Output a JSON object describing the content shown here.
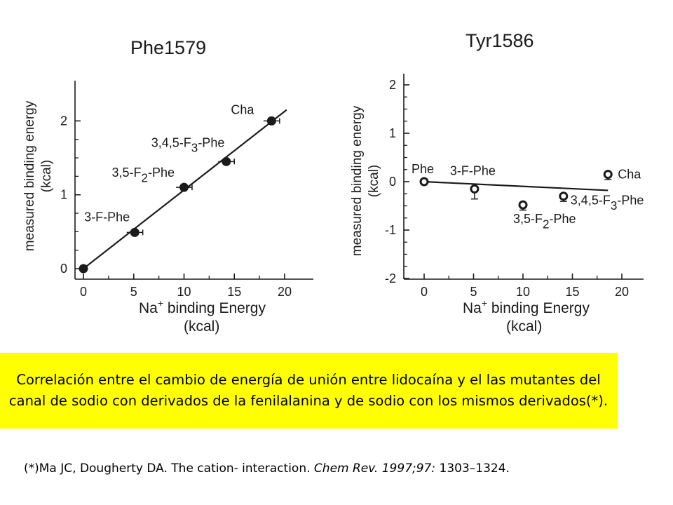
{
  "chart_data": [
    {
      "type": "scatter",
      "title": "Phe1579",
      "ylabel_line1": "measured binding energy",
      "ylabel_line2": "(kcal)",
      "xlabel_prefix": "Na",
      "xlabel_sup": "+",
      "xlabel_suffix": " binding Energy",
      "xlabel_line2": "(kcal)",
      "xlim": [
        -1,
        22
      ],
      "ylim": [
        -0.1,
        2.5
      ],
      "xticks": [
        0,
        5,
        10,
        15,
        20
      ],
      "yticks": [
        0,
        1,
        2
      ],
      "points": [
        {
          "label": "",
          "x": 0,
          "y": 0,
          "err": 0
        },
        {
          "label": "3-F-Phe",
          "x": 5.1,
          "y": 0.49,
          "err": 0.5
        },
        {
          "label": "3,5-F2-Phe",
          "x": 10,
          "y": 1.1,
          "err": 0.5
        },
        {
          "label": "3,4,5-F3-Phe",
          "x": 14.2,
          "y": 1.45,
          "err": 0.5
        },
        {
          "label": "Cha",
          "x": 18.7,
          "y": 2.0,
          "err": 0.5
        }
      ],
      "fit": {
        "x": [
          0,
          20.2
        ],
        "y": [
          0,
          2.15
        ]
      },
      "marker": "filled"
    },
    {
      "type": "scatter",
      "title": "Tyr1586",
      "ylabel_line1": "measured binding energy",
      "ylabel_line2": "(kcal)",
      "xlabel_prefix": "Na",
      "xlabel_sup": "+",
      "xlabel_suffix": " binding Energy",
      "xlabel_line2": "(kcal)",
      "xlim": [
        -1.5,
        22
      ],
      "ylim": [
        -2,
        2.2
      ],
      "xticks": [
        0,
        5,
        10,
        15,
        20
      ],
      "yticks": [
        -2,
        -1,
        0,
        1,
        2
      ],
      "points": [
        {
          "label": "Phe",
          "x": 0,
          "y": 0,
          "err": 0
        },
        {
          "label": "3-F-Phe",
          "x": 5.1,
          "y": -0.15,
          "err": 0.15
        },
        {
          "label": "3,5-F2-Phe",
          "x": 10,
          "y": -0.48,
          "err": 0.05
        },
        {
          "label": "3,4,5-F3-Phe",
          "x": 14.1,
          "y": -0.3,
          "err": 0.05
        },
        {
          "label": "Cha",
          "x": 18.6,
          "y": 0.15,
          "err": 0.05
        }
      ],
      "fit": {
        "x": [
          0,
          18.6
        ],
        "y": [
          0,
          -0.18
        ]
      },
      "marker": "open"
    }
  ],
  "caption": "Correlación entre el cambio de energía de unión entre lidocaína y el las mutantes del canal de sodio con derivados de la fenilalanina y de sodio con los mismos derivados(*).",
  "reference": {
    "part1": "(*)Ma JC, Dougherty DA. The cation- interaction. ",
    "journal": "Chem Rev. 1997;97:",
    "pages": " 1303–1324."
  }
}
